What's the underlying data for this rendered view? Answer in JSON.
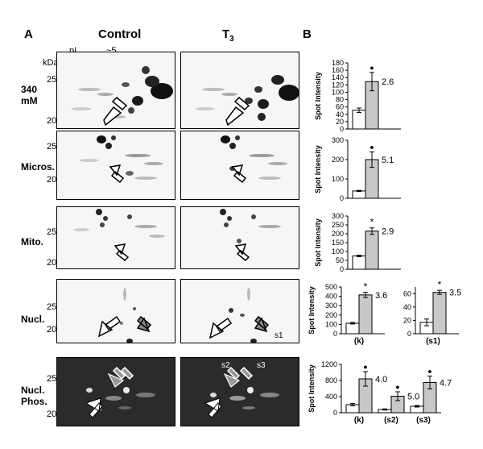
{
  "figure": {
    "panel_a_label": "A",
    "panel_b_label": "B",
    "col_control": "Control",
    "col_t3_base": "T",
    "col_t3_sub": "3",
    "pi_label": "pI",
    "pi_value": "~5",
    "kda_label": "kDa",
    "rows": [
      {
        "label_line1": "340",
        "label_line2": "mM",
        "mw": [
          "25",
          "20"
        ]
      },
      {
        "label_line1": "Micros.",
        "label_line2": "",
        "mw": [
          "25",
          "20"
        ]
      },
      {
        "label_line1": "Mito.",
        "label_line2": "",
        "mw": [
          "25",
          "20"
        ]
      },
      {
        "label_line1": "Nucl.",
        "label_line2": "",
        "mw": [
          "25",
          "20"
        ]
      },
      {
        "label_line1": "Nucl.",
        "label_line2": "Phos.",
        "mw": [
          "25",
          "20"
        ]
      }
    ],
    "gel_annotations": {
      "s1": "s1",
      "s2": "s2",
      "s3": "s3"
    },
    "colors": {
      "bar_control": "#ffffff",
      "bar_t3": "#c8c8c8",
      "gel_dark": "#2b2b2b",
      "gel_light": "#f6f6f6"
    }
  },
  "chart_data": [
    {
      "type": "bar",
      "ylabel": "Spot Intensity",
      "ylim": [
        0,
        180
      ],
      "yticks": [
        0,
        20,
        40,
        60,
        80,
        100,
        120,
        140,
        160,
        180
      ],
      "categories": [
        ""
      ],
      "series": [
        {
          "values": [
            51
          ]
        },
        {
          "values": [
            129
          ]
        }
      ],
      "errors": [
        [
          6
        ],
        [
          25
        ]
      ],
      "fold": [
        "2.6"
      ],
      "marker": [
        "●"
      ]
    },
    {
      "type": "bar",
      "ylabel": "Spot Intensity",
      "ylim": [
        0,
        300
      ],
      "yticks": [
        0,
        100,
        200,
        300
      ],
      "categories": [
        ""
      ],
      "series": [
        {
          "values": [
            38
          ]
        },
        {
          "values": [
            200
          ]
        }
      ],
      "errors": [
        [
          3
        ],
        [
          40
        ]
      ],
      "fold": [
        "5.1"
      ],
      "marker": [
        "●"
      ]
    },
    {
      "type": "bar",
      "ylabel": "Spot Intensity",
      "ylim": [
        0,
        300
      ],
      "yticks": [
        0,
        50,
        100,
        150,
        200,
        250,
        300
      ],
      "categories": [
        ""
      ],
      "series": [
        {
          "values": [
            75
          ]
        },
        {
          "values": [
            215
          ]
        }
      ],
      "errors": [
        [
          4
        ],
        [
          18
        ]
      ],
      "fold": [
        "2.9"
      ],
      "marker": [
        "*"
      ]
    },
    {
      "type": "bar",
      "ylabel": "Spot Intensity",
      "ylim": [
        0,
        500
      ],
      "yticks": [
        0,
        100,
        200,
        300,
        400,
        500
      ],
      "categories": [
        "(k)"
      ],
      "series": [
        {
          "values": [
            112
          ]
        },
        {
          "values": [
            415
          ]
        }
      ],
      "errors": [
        [
          8
        ],
        [
          28
        ]
      ],
      "fold": [
        "3.6"
      ],
      "marker": [
        "*"
      ]
    },
    {
      "type": "bar",
      "ylabel": "",
      "ylim": [
        0,
        70
      ],
      "yticks": [
        0,
        20,
        40,
        60
      ],
      "categories": [
        "(s1)"
      ],
      "series": [
        {
          "values": [
            17
          ]
        },
        {
          "values": [
            62
          ]
        }
      ],
      "errors": [
        [
          5
        ],
        [
          3
        ]
      ],
      "fold": [
        "3.5"
      ],
      "marker": [
        "*"
      ]
    },
    {
      "type": "bar",
      "ylabel": "Spot Intensity",
      "ylim": [
        0,
        1200
      ],
      "yticks": [
        0,
        400,
        800,
        1200
      ],
      "categories": [
        "(k)",
        "(s2)",
        "(s3)"
      ],
      "series": [
        {
          "values": [
            200,
            80,
            160
          ]
        },
        {
          "values": [
            840,
            410,
            750
          ]
        }
      ],
      "errors": [
        [
          30,
          15,
          20
        ],
        [
          180,
          110,
          160
        ]
      ],
      "fold": [
        "4.0",
        "5.0",
        "4.7"
      ],
      "marker": [
        "●",
        "●",
        "●"
      ]
    }
  ]
}
